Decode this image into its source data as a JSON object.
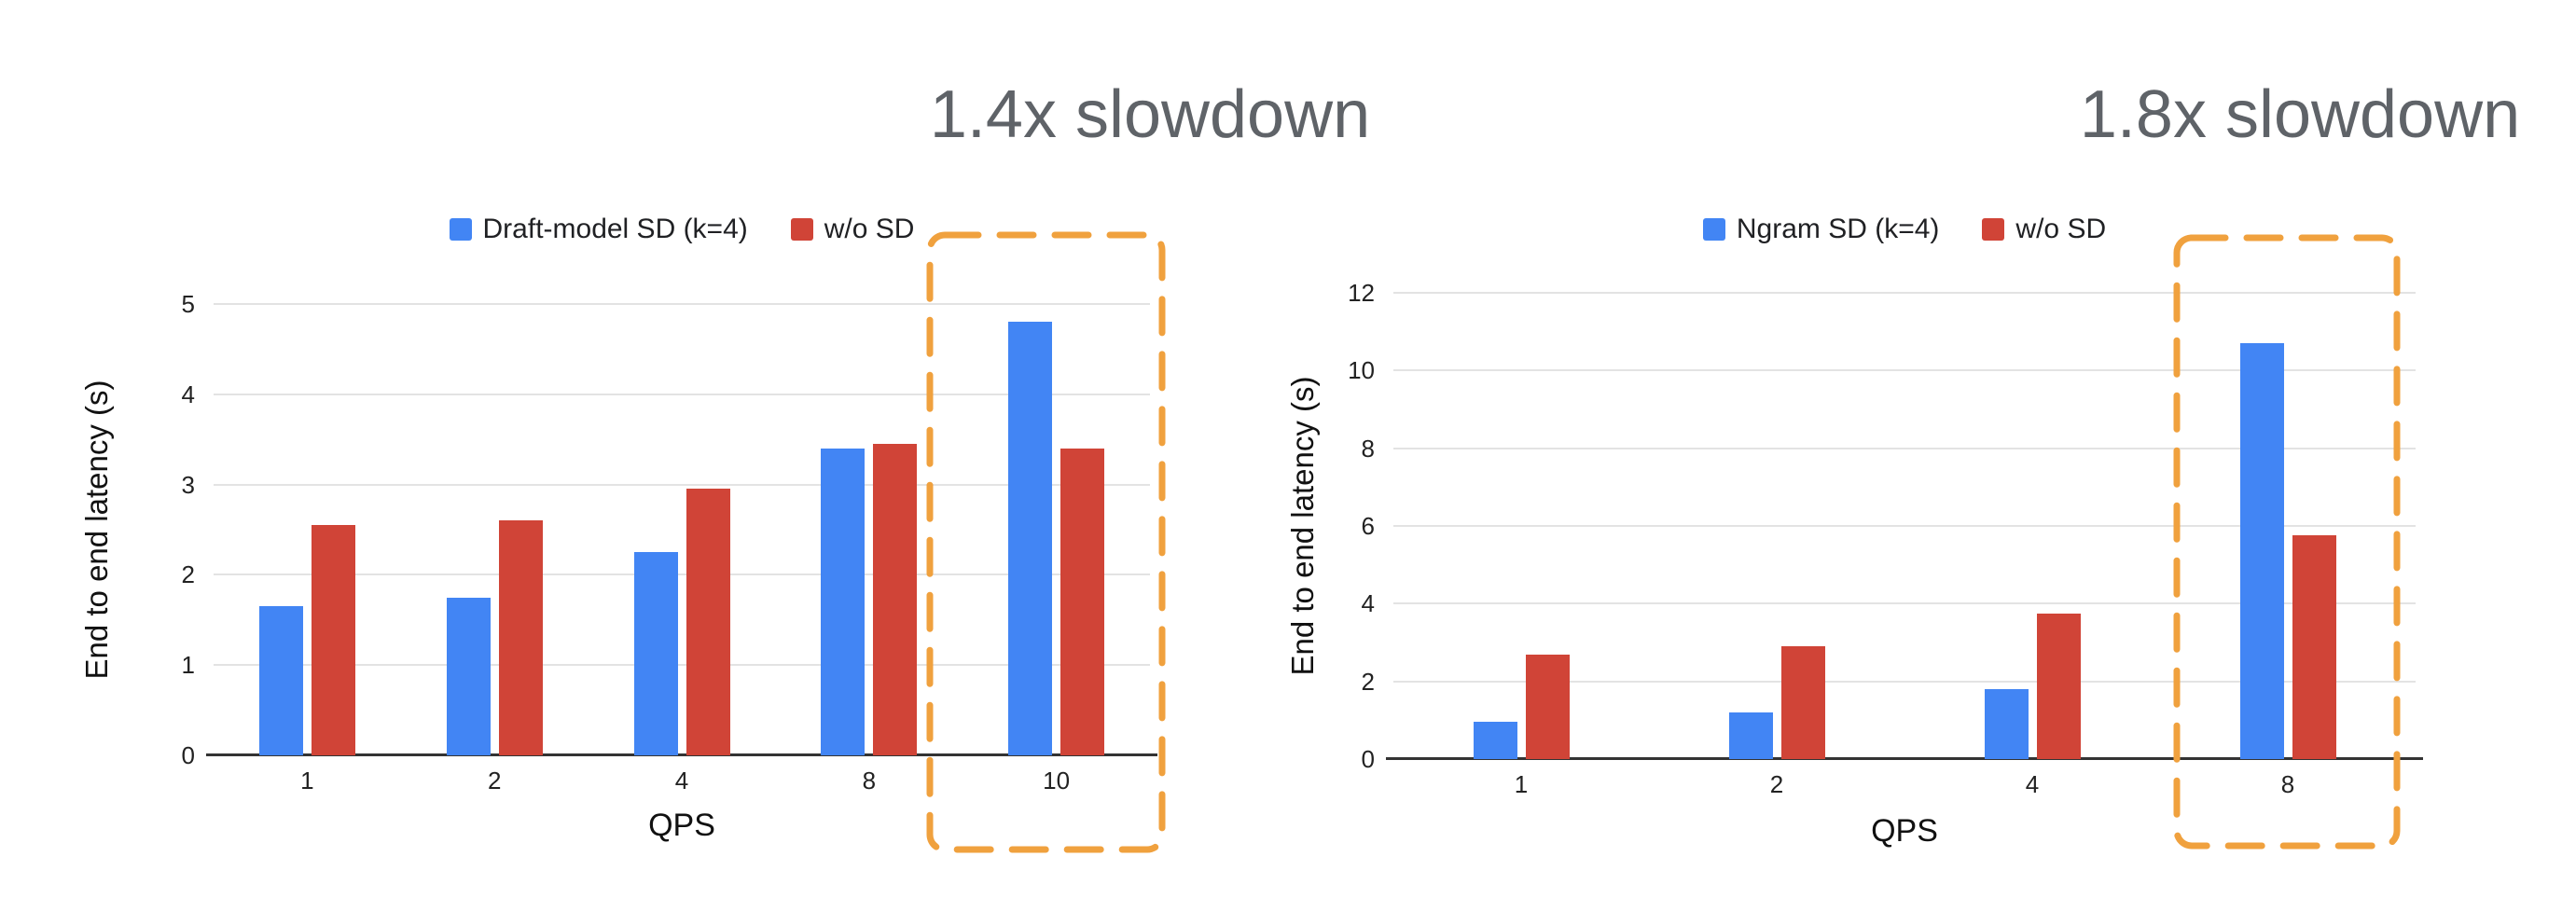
{
  "annotations": {
    "left_slowdown": "1.4x slowdown",
    "right_slowdown": "1.8x slowdown"
  },
  "colors": {
    "series_blue": "#4285F4",
    "series_red": "#D04437",
    "highlight_orange": "#F0A13E",
    "annotation_gray": "#5F6368",
    "gridline_gray": "#E3E3E3"
  },
  "chart_data": [
    {
      "type": "bar",
      "title": "",
      "annotation": "1.4x slowdown",
      "categories": [
        "1",
        "2",
        "4",
        "8",
        "10"
      ],
      "series": [
        {
          "name": "Draft-model SD (k=4)",
          "color_key": "series_blue",
          "values": [
            1.65,
            1.75,
            2.25,
            3.4,
            4.8
          ]
        },
        {
          "name": "w/o SD",
          "color_key": "series_red",
          "values": [
            2.55,
            2.6,
            2.95,
            3.45,
            3.4
          ]
        }
      ],
      "xlabel": "QPS",
      "ylabel": "End to end latency (s)",
      "ylim": [
        0,
        5
      ],
      "ytick_step": 1,
      "yticks": [
        0,
        1,
        2,
        3,
        4,
        5
      ],
      "grid": true,
      "legend_position": "top",
      "highlight_category_index": 4,
      "highlight_label": "10"
    },
    {
      "type": "bar",
      "title": "",
      "annotation": "1.8x slowdown",
      "categories": [
        "1",
        "2",
        "4",
        "8"
      ],
      "series": [
        {
          "name": "Ngram SD (k=4)",
          "color_key": "series_blue",
          "values": [
            0.95,
            1.2,
            1.8,
            10.7
          ]
        },
        {
          "name": "w/o SD",
          "color_key": "series_red",
          "values": [
            2.7,
            2.9,
            3.75,
            5.75
          ]
        }
      ],
      "xlabel": "QPS",
      "ylabel": "End to end latency (s)",
      "ylim": [
        0,
        12
      ],
      "ytick_step": 2,
      "yticks": [
        0,
        2,
        4,
        6,
        8,
        10,
        12
      ],
      "grid": true,
      "legend_position": "top",
      "highlight_category_index": 3,
      "highlight_label": "8"
    }
  ]
}
